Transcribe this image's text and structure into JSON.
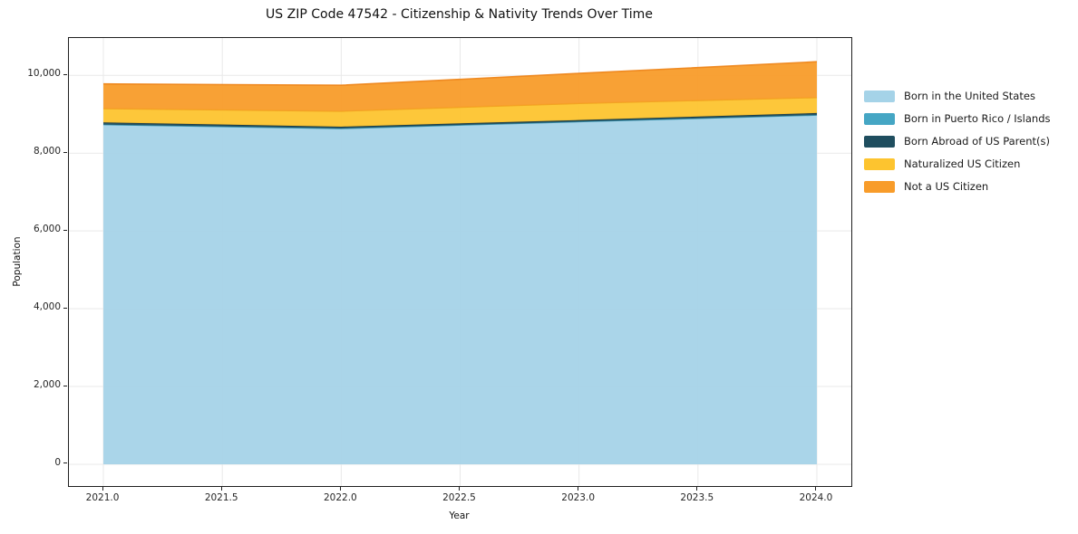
{
  "title": "US ZIP Code 47542 - Citizenship & Nativity Trends Over Time",
  "chart_data": {
    "type": "area",
    "stacked": true,
    "title": "US ZIP Code 47542 - Citizenship & Nativity Trends Over Time",
    "xlabel": "Year",
    "ylabel": "Population",
    "x": [
      2021,
      2022,
      2023,
      2024
    ],
    "series": [
      {
        "name": "Born in the United States",
        "color": "#a5d3e8",
        "edge": "#8fc4dc",
        "values": [
          8735,
          8635,
          8810,
          8980
        ]
      },
      {
        "name": "Born in Puerto Rico / Islands",
        "color": "#45a6c4",
        "edge": "#3a93b0",
        "values": [
          0,
          0,
          0,
          0
        ]
      },
      {
        "name": "Born Abroad of US Parent(s)",
        "color": "#1f4e5f",
        "edge": "#173a47",
        "values": [
          55,
          45,
          40,
          50
        ]
      },
      {
        "name": "Naturalized US Citizen",
        "color": "#fdc42f",
        "edge": "#f0a31e",
        "values": [
          355,
          400,
          430,
          400
        ]
      },
      {
        "name": "Not a US Citizen",
        "color": "#f89c2a",
        "edge": "#ee861b",
        "values": [
          635,
          665,
          770,
          920
        ]
      }
    ],
    "totals": [
      9780,
      9745,
      10050,
      10350
    ],
    "x_ticks": [
      {
        "value": 2021.0,
        "label": "2021.0"
      },
      {
        "value": 2021.5,
        "label": "2021.5"
      },
      {
        "value": 2022.0,
        "label": "2022.0"
      },
      {
        "value": 2022.5,
        "label": "2022.5"
      },
      {
        "value": 2023.0,
        "label": "2023.0"
      },
      {
        "value": 2023.5,
        "label": "2023.5"
      },
      {
        "value": 2024.0,
        "label": "2024.0"
      }
    ],
    "y_ticks": [
      {
        "value": 0,
        "label": "0"
      },
      {
        "value": 2000,
        "label": "2,000"
      },
      {
        "value": 4000,
        "label": "4,000"
      },
      {
        "value": 6000,
        "label": "6,000"
      },
      {
        "value": 8000,
        "label": "8,000"
      },
      {
        "value": 10000,
        "label": "10,000"
      }
    ],
    "xlim": [
      2020.855,
      2024.145
    ],
    "ylim": [
      -560,
      10960
    ],
    "grid": true,
    "grid_color": "#e9e9e9",
    "legend_position": "right",
    "background": "#ffffff"
  }
}
